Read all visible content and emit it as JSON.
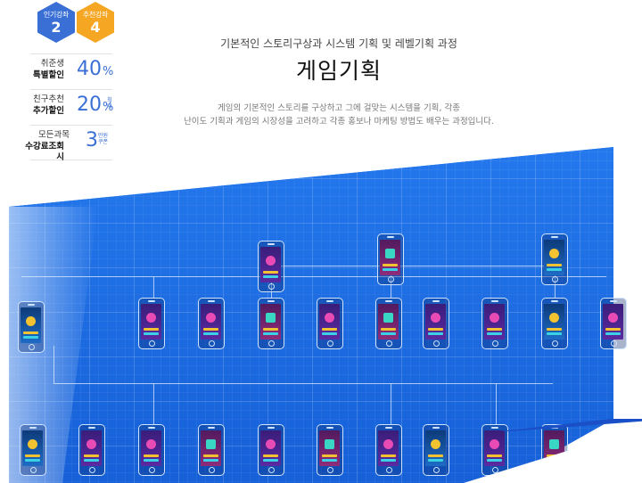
{
  "badges": [
    {
      "label": "인기강좌",
      "number": "2",
      "color": "#3a6fd6"
    },
    {
      "label": "추천강좌",
      "number": "4",
      "color": "#f5a623"
    }
  ],
  "promos": [
    {
      "line1": "취준생",
      "line2": "특별할인",
      "value": "40",
      "unit": "%",
      "note": ""
    },
    {
      "line1": "친구추천",
      "line2": "추가할인",
      "value": "20",
      "unit": "%",
      "note": "최대"
    },
    {
      "line1": "모든과목",
      "line2": "수강료조회시",
      "value": "3",
      "unit": "",
      "note": "만원 쿠폰"
    }
  ],
  "header": {
    "subtitle": "기본적인 스토리구상과 시스템 기획 및 레벨기획 과정",
    "title": "게임기획",
    "desc_line1": "게임의 기본적인 스토리를 구상하고 그에 걸맞는 시스템을 기획, 각종",
    "desc_line2": "난이도 기획과 게임의 시장성을 고려하고 각종 홍보나 마케팅 방법도 배우는 과정입니다."
  },
  "colors": {
    "accent": "#3a6fd6",
    "orange": "#f5a623",
    "blueprint": "#1b6fe6"
  }
}
